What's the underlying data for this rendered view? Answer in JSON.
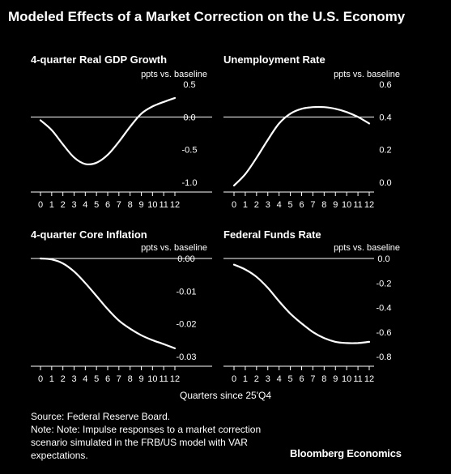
{
  "title": "Modeled Effects of a Market Correction on the U.S. Economy",
  "x_shared_label": "Quarters since 25'Q4",
  "source": "Source: Federal Reserve Board.",
  "note": "Note: Note: Impulse responses to a market correction scenario simulated in the FRB/US model with VAR expectations.",
  "brand": "Bloomberg Economics",
  "colors": {
    "background": "#000000",
    "line": "#ffffff"
  },
  "chart_data": [
    {
      "type": "line",
      "title": "4-quarter Real GDP Growth",
      "ylabel": "ppts vs. baseline",
      "ylim": [
        -1.0,
        0.5
      ],
      "yticks": [
        0.5,
        0.0,
        -0.5,
        -1.0
      ],
      "ytick_labels": [
        "0.5",
        "0.0",
        "-0.5",
        "-1.0"
      ],
      "zero_line": 0.0,
      "x": [
        0,
        1,
        2,
        3,
        4,
        5,
        6,
        7,
        8,
        9,
        10,
        11,
        12
      ],
      "y": [
        -0.05,
        -0.2,
        -0.42,
        -0.62,
        -0.72,
        -0.7,
        -0.58,
        -0.38,
        -0.15,
        0.05,
        0.16,
        0.23,
        0.29
      ]
    },
    {
      "type": "line",
      "title": "Unemployment Rate",
      "ylabel": "ppts vs. baseline",
      "ylim": [
        0.0,
        0.6
      ],
      "yticks": [
        0.6,
        0.4,
        0.2,
        0.0
      ],
      "ytick_labels": [
        "0.6",
        "0.4",
        "0.2",
        "0.0"
      ],
      "zero_line": 0.4,
      "x": [
        0,
        1,
        2,
        3,
        4,
        5,
        6,
        7,
        8,
        9,
        10,
        11,
        12
      ],
      "y": [
        -0.02,
        0.05,
        0.15,
        0.26,
        0.36,
        0.42,
        0.45,
        0.46,
        0.46,
        0.45,
        0.43,
        0.4,
        0.36
      ]
    },
    {
      "type": "line",
      "title": "4-quarter Core Inflation",
      "ylabel": "ppts vs. baseline",
      "ylim": [
        -0.03,
        0.0
      ],
      "yticks": [
        0.0,
        -0.01,
        -0.02,
        -0.03
      ],
      "ytick_labels": [
        "0.00",
        "-0.01",
        "-0.02",
        "-0.03"
      ],
      "zero_line": 0.0,
      "x": [
        0,
        1,
        2,
        3,
        4,
        5,
        6,
        7,
        8,
        9,
        10,
        11,
        12
      ],
      "y": [
        0.0,
        -0.0003,
        -0.0015,
        -0.004,
        -0.0075,
        -0.0115,
        -0.0155,
        -0.019,
        -0.0215,
        -0.0235,
        -0.025,
        -0.0262,
        -0.0275
      ]
    },
    {
      "type": "line",
      "title": "Federal Funds Rate",
      "ylabel": "ppts vs. baseline",
      "ylim": [
        -0.8,
        0.0
      ],
      "yticks": [
        0.0,
        -0.2,
        -0.4,
        -0.6,
        -0.8
      ],
      "ytick_labels": [
        "0.0",
        "-0.2",
        "-0.4",
        "-0.6",
        "-0.8"
      ],
      "zero_line": 0.0,
      "x": [
        0,
        1,
        2,
        3,
        4,
        5,
        6,
        7,
        8,
        9,
        10,
        11,
        12
      ],
      "y": [
        -0.05,
        -0.09,
        -0.15,
        -0.24,
        -0.35,
        -0.45,
        -0.53,
        -0.6,
        -0.65,
        -0.68,
        -0.69,
        -0.69,
        -0.68
      ]
    }
  ]
}
